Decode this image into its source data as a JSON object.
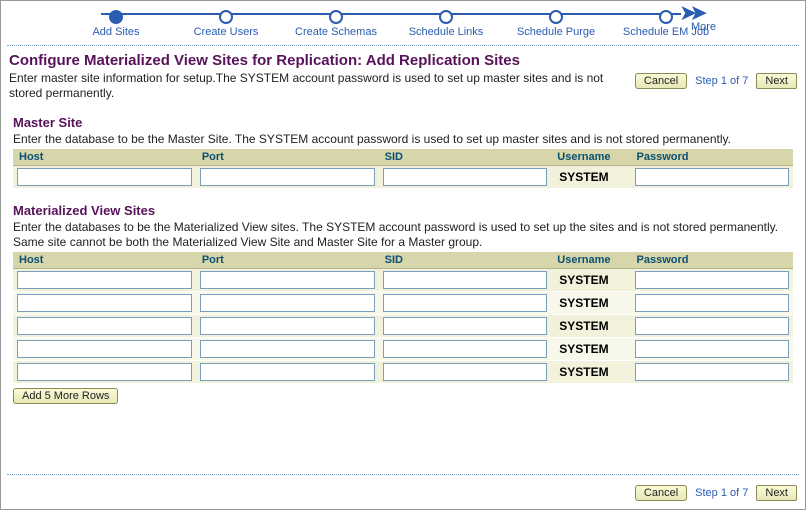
{
  "colors": {
    "link": "#2a5db0",
    "heading": "#58125a",
    "th_bg": "#d6d6aa",
    "th_text": "#0b4e73",
    "cell_bg": "#f1f1dc",
    "cell_bg_alt": "#f7f7ea",
    "button_bg_top": "#fafad8",
    "button_bg_bottom": "#e8e8b8",
    "button_border": "#8a8a55",
    "input_border": "#7a9ebd",
    "dotted": "#7aa1d2"
  },
  "wizard": {
    "steps": [
      {
        "label": "Add Sites",
        "current": true
      },
      {
        "label": "Create Users",
        "current": false
      },
      {
        "label": "Create Schemas",
        "current": false
      },
      {
        "label": "Schedule Links",
        "current": false
      },
      {
        "label": "Schedule Purge",
        "current": false
      },
      {
        "label": "Schedule EM Job",
        "current": false
      }
    ],
    "more_label": "More"
  },
  "page": {
    "title": "Configure Materialized View Sites for Replication: Add Replication Sites",
    "intro": "Enter master site information for setup.The SYSTEM account password is used to set up master sites and is not stored permanently.",
    "step_info": "Step 1 of 7",
    "cancel_label": "Cancel",
    "next_label": "Next"
  },
  "master": {
    "heading": "Master Site",
    "desc": "Enter the database to be the Master Site. The SYSTEM account password is used to set up master sites and is not stored permanently.",
    "columns": {
      "host": "Host",
      "port": "Port",
      "sid": "SID",
      "user": "Username",
      "pass": "Password"
    },
    "rows": [
      {
        "host": "",
        "port": "",
        "sid": "",
        "user": "SYSTEM",
        "pass": ""
      }
    ]
  },
  "mv": {
    "heading": "Materialized View Sites",
    "desc": "Enter the databases to be the Materialized View sites. The SYSTEM account password is used to set up the sites and is not stored permanently. Same site cannot be both the Materialized View Site and Master Site for a Master group.",
    "columns": {
      "host": "Host",
      "port": "Port",
      "sid": "SID",
      "user": "Username",
      "pass": "Password"
    },
    "rows": [
      {
        "host": "",
        "port": "",
        "sid": "",
        "user": "SYSTEM",
        "pass": ""
      },
      {
        "host": "",
        "port": "",
        "sid": "",
        "user": "SYSTEM",
        "pass": ""
      },
      {
        "host": "",
        "port": "",
        "sid": "",
        "user": "SYSTEM",
        "pass": ""
      },
      {
        "host": "",
        "port": "",
        "sid": "",
        "user": "SYSTEM",
        "pass": ""
      },
      {
        "host": "",
        "port": "",
        "sid": "",
        "user": "SYSTEM",
        "pass": ""
      }
    ],
    "add_rows_label": "Add 5 More Rows"
  }
}
